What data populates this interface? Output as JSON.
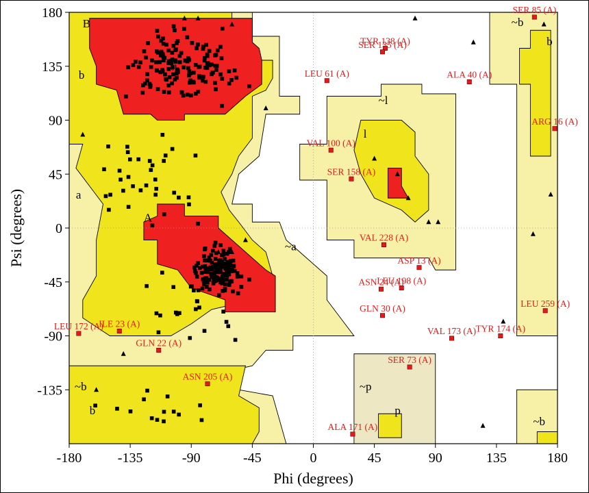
{
  "chart_data": {
    "type": "scatter",
    "title": "",
    "xlabel": "Phi (degrees)",
    "ylabel": "Psi (degrees)",
    "xlim": [
      -180,
      180
    ],
    "ylim": [
      -180,
      180
    ],
    "xticks": [
      "-180",
      "-135",
      "-90",
      "-45",
      "0",
      "45",
      "90",
      "135",
      "180"
    ],
    "yticks": [
      "180",
      "135",
      "90",
      "45",
      "0",
      "-45",
      "-90",
      "-135"
    ],
    "colors": {
      "core": "#ee2020",
      "allowed": "#f0e41c",
      "generous": "#f7f1a8",
      "glycine": "#ede7c4",
      "marker": "#000000",
      "outlier": "#e11b1b"
    },
    "region_labels": [
      {
        "text": "B",
        "x": -170,
        "y": 171
      },
      {
        "text": "b",
        "x": -173,
        "y": 128
      },
      {
        "text": "~b",
        "x": -107,
        "y": 133
      },
      {
        "text": "a",
        "x": -175,
        "y": 28
      },
      {
        "text": "A",
        "x": -125,
        "y": 9
      },
      {
        "text": "~a",
        "x": -21,
        "y": -15
      },
      {
        "text": "~l",
        "x": 48,
        "y": 107
      },
      {
        "text": "l",
        "x": 37,
        "y": 79
      },
      {
        "text": "~b",
        "x": 146,
        "y": 172
      },
      {
        "text": "b",
        "x": 172,
        "y": 156
      },
      {
        "text": "~b",
        "x": -176,
        "y": -132
      },
      {
        "text": "b",
        "x": -165,
        "y": -152
      },
      {
        "text": "~p",
        "x": 34,
        "y": -132
      },
      {
        "text": "p",
        "x": 60,
        "y": -152
      },
      {
        "text": "~b",
        "x": 162,
        "y": -161
      }
    ],
    "outliers": [
      {
        "label": "SER 85 (A)",
        "phi": 163,
        "psi": 176
      },
      {
        "label": "TYR 138 (A)",
        "phi": 53,
        "psi": 150
      },
      {
        "label": "SER 135 (A)",
        "phi": 51,
        "psi": 147
      },
      {
        "label": "LEU 61 (A)",
        "phi": 10,
        "psi": 123
      },
      {
        "label": "ALA 40 (A)",
        "phi": 115,
        "psi": 122
      },
      {
        "label": "ARG 16 (A)",
        "phi": 178,
        "psi": 83
      },
      {
        "label": "VAL 100 (A)",
        "phi": 13,
        "psi": 65
      },
      {
        "label": "SER 158 (A)",
        "phi": 28,
        "psi": 41
      },
      {
        "label": "VAL 228 (A)",
        "phi": 52,
        "psi": -14
      },
      {
        "label": "ASP 13 (A)",
        "phi": 78,
        "psi": -33
      },
      {
        "label": "ASN 24 (A)",
        "phi": 50,
        "psi": -51
      },
      {
        "label": "LEU 198 (A)",
        "phi": 65,
        "psi": -50
      },
      {
        "label": "LEU 259 (A)",
        "phi": 171,
        "psi": -69
      },
      {
        "label": "GLN 30 (A)",
        "phi": 51,
        "psi": -73
      },
      {
        "label": "LEU 172 (A)",
        "phi": -173,
        "psi": -88
      },
      {
        "label": "ILE 23 (A)",
        "phi": -143,
        "psi": -86
      },
      {
        "label": "VAL 173 (A)",
        "phi": 102,
        "psi": -92
      },
      {
        "label": "TYR 174 (A)",
        "phi": 138,
        "psi": -90
      },
      {
        "label": "GLN 22 (A)",
        "phi": -114,
        "psi": -102
      },
      {
        "label": "SER 73 (A)",
        "phi": 71,
        "psi": -116
      },
      {
        "label": "ASN 205 (A)",
        "phi": -78,
        "psi": -130
      },
      {
        "label": "ALA 171 (A)",
        "phi": 29,
        "psi": -172
      }
    ]
  }
}
